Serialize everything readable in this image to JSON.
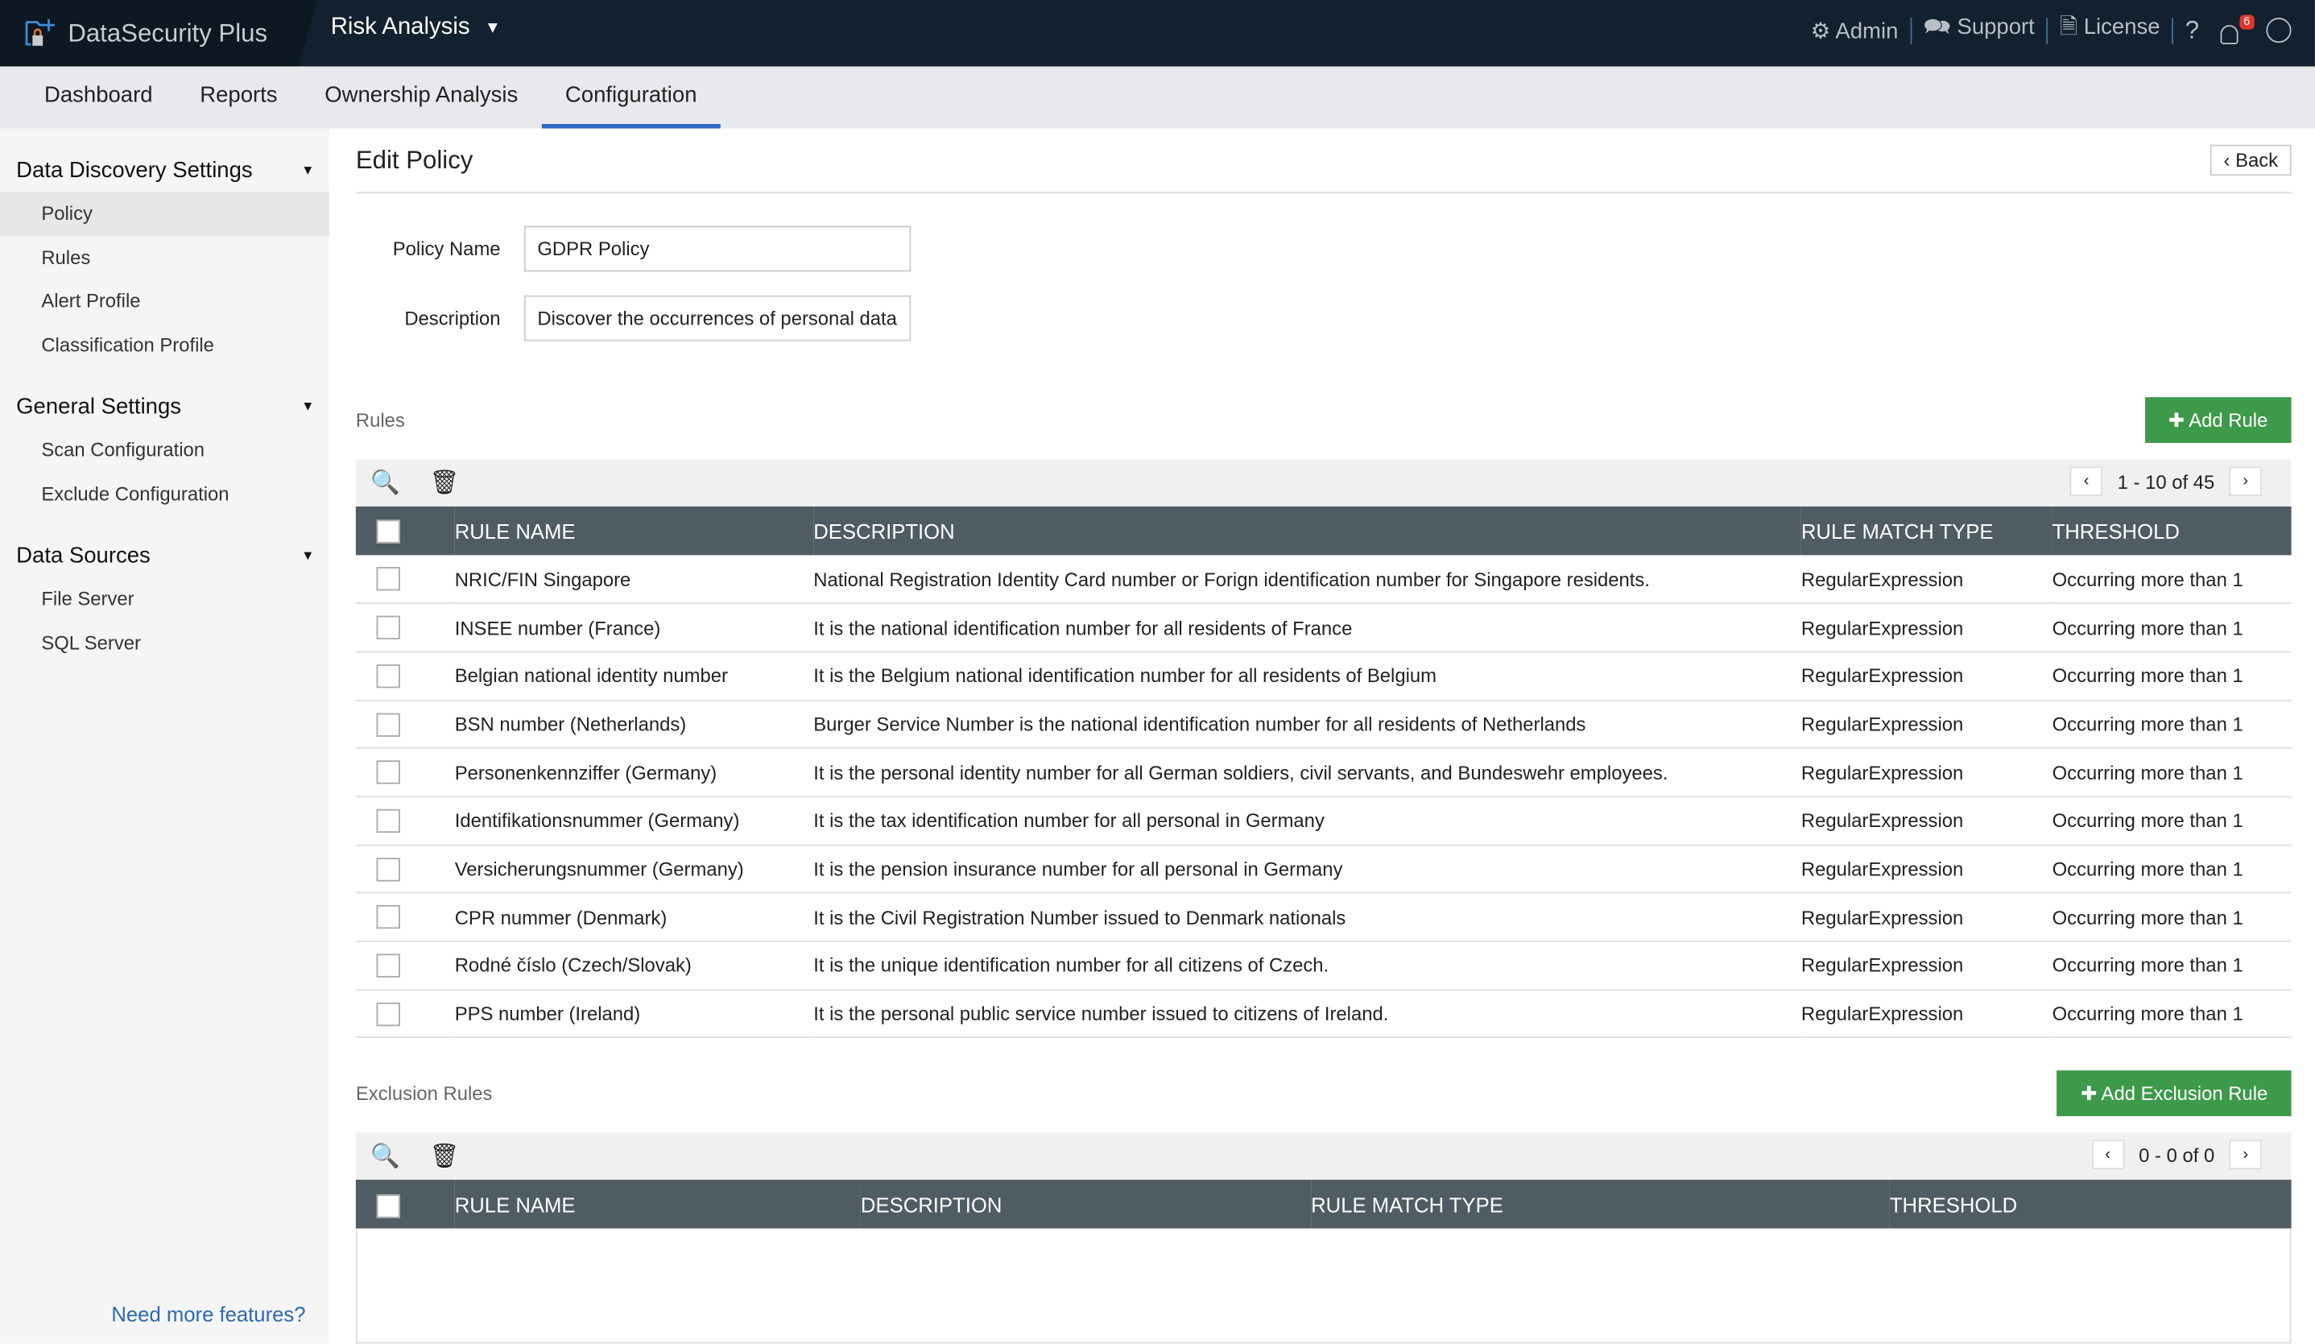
{
  "app": {
    "name": "DataSecurity Plus",
    "module": "Risk Analysis"
  },
  "topright": {
    "admin": "Admin",
    "support": "Support",
    "license": "License",
    "help": "?",
    "notifications": "6"
  },
  "nav": [
    "Dashboard",
    "Reports",
    "Ownership Analysis",
    "Configuration"
  ],
  "sidebar": [
    {
      "title": "Data Discovery Settings",
      "items": [
        "Policy",
        "Rules",
        "Alert Profile",
        "Classification Profile"
      ]
    },
    {
      "title": "General Settings",
      "items": [
        "Scan Configuration",
        "Exclude Configuration"
      ]
    },
    {
      "title": "Data Sources",
      "items": [
        "File Server",
        "SQL Server"
      ]
    }
  ],
  "need_more": "Need more features?",
  "page": {
    "title": "Edit Policy",
    "back": "Back",
    "policy_name_label": "Policy Name",
    "policy_name": "GDPR Policy",
    "description_label": "Description",
    "description": "Discover the occurrences of personal data"
  },
  "rules": {
    "label": "Rules",
    "add": "Add Rule",
    "pagination": "1 - 10 of 45",
    "columns": [
      "RULE NAME",
      "DESCRIPTION",
      "RULE MATCH TYPE",
      "THRESHOLD"
    ],
    "rows": [
      [
        "NRIC/FIN Singapore",
        "National Registration Identity Card number or Forign identification number for Singapore residents.",
        "RegularExpression",
        "Occurring more than 1"
      ],
      [
        "INSEE number (France)",
        "It is the national identification number for all residents of France",
        "RegularExpression",
        "Occurring more than 1"
      ],
      [
        "Belgian national identity number",
        "It is the Belgium national identification number for all residents of Belgium",
        "RegularExpression",
        "Occurring more than 1"
      ],
      [
        "BSN number (Netherlands)",
        "Burger Service Number is the national identification number for all residents of Netherlands",
        "RegularExpression",
        "Occurring more than 1"
      ],
      [
        "Personenkennziffer (Germany)",
        "It is the personal identity number for all German soldiers, civil servants, and Bundeswehr employees.",
        "RegularExpression",
        "Occurring more than 1"
      ],
      [
        "Identifikationsnummer (Germany)",
        "It is the tax identification number for all personal in Germany",
        "RegularExpression",
        "Occurring more than 1"
      ],
      [
        "Versicherungsnummer (Germany)",
        "It is the pension insurance number for all personal in Germany",
        "RegularExpression",
        "Occurring more than 1"
      ],
      [
        "CPR nummer (Denmark)",
        "It is the Civil Registration Number issued to Denmark nationals",
        "RegularExpression",
        "Occurring more than 1"
      ],
      [
        "Rodné číslo (Czech/Slovak)",
        "It is the unique identification number for all citizens of Czech.",
        "RegularExpression",
        "Occurring more than 1"
      ],
      [
        "PPS number (Ireland)",
        "It is the personal public service number issued to citizens of Ireland.",
        "RegularExpression",
        "Occurring more than 1"
      ]
    ]
  },
  "exclusion": {
    "label": "Exclusion Rules",
    "add": "Add Exclusion Rule",
    "pagination": "0 - 0 of 0",
    "columns": [
      "RULE NAME",
      "DESCRIPTION",
      "RULE MATCH TYPE",
      "THRESHOLD"
    ]
  }
}
